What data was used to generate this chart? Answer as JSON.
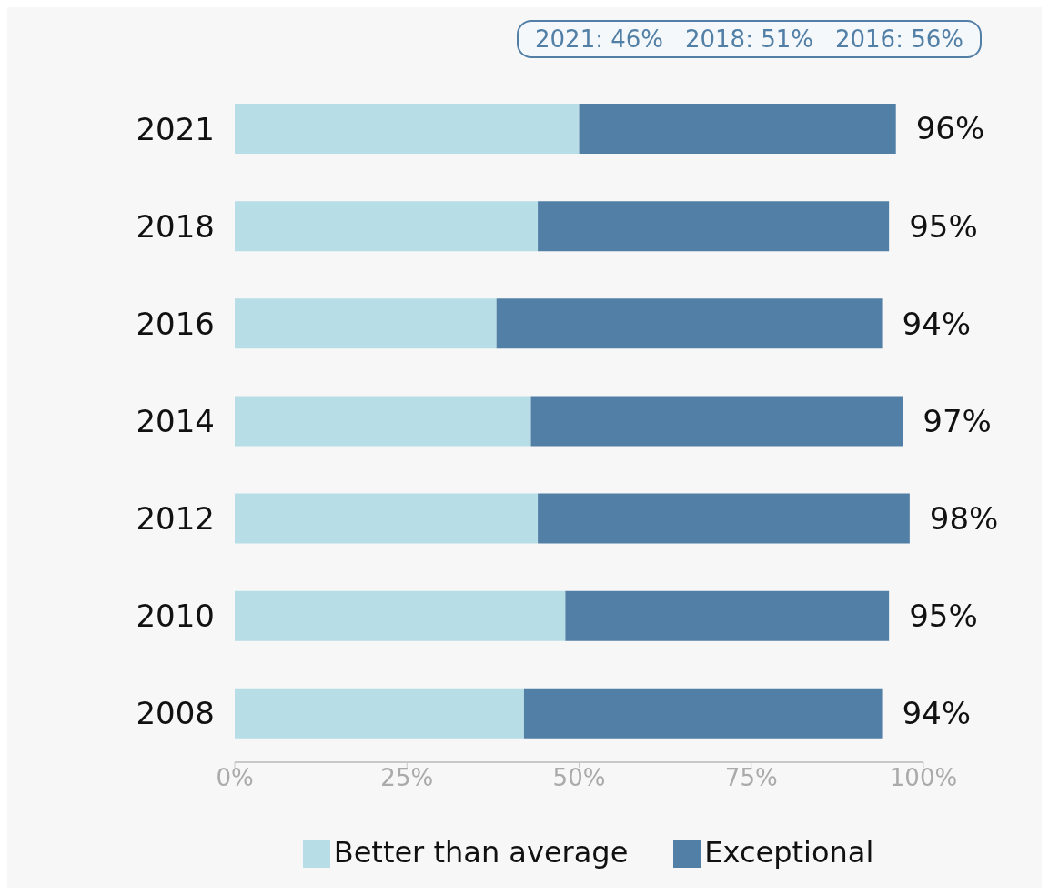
{
  "chart_data": {
    "type": "bar",
    "orientation": "horizontal",
    "stacked": true,
    "categories": [
      "2021",
      "2018",
      "2016",
      "2014",
      "2012",
      "2010",
      "2008"
    ],
    "series": [
      {
        "name": "Better than average",
        "color": "#b7dde6",
        "values": [
          50,
          44,
          38,
          43,
          44,
          48,
          42
        ]
      },
      {
        "name": "Exceptional",
        "color": "#527fa6",
        "values": [
          46,
          51,
          56,
          54,
          54,
          47,
          52
        ]
      }
    ],
    "totals": [
      "96%",
      "95%",
      "94%",
      "97%",
      "98%",
      "95%",
      "94%"
    ],
    "xlim": [
      0,
      100
    ],
    "xticks": [
      {
        "value": 0,
        "label": "0%"
      },
      {
        "value": 25,
        "label": "25%"
      },
      {
        "value": 50,
        "label": "50%"
      },
      {
        "value": 75,
        "label": "75%"
      },
      {
        "value": 100,
        "label": "100%"
      }
    ],
    "annotations": [
      "2021: 46%",
      "2018: 51%",
      "2016: 56%"
    ],
    "legend": "bottom",
    "grid": false
  }
}
